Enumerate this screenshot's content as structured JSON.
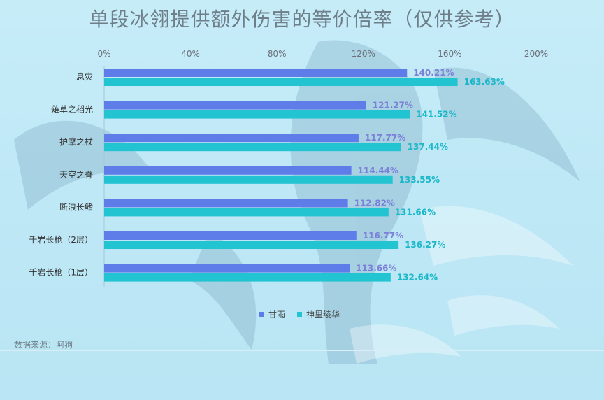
{
  "title": "单段冰翎提供额外伤害的等价倍率（仅供参考）",
  "source": "数据来源：阿狗",
  "colors": {
    "series1": "#5f7de8",
    "series2": "#22c4d2",
    "label1": "#7b7fd8",
    "label2": "#1ab8c8",
    "axis_text": "#6a6f78",
    "category_text": "#333333"
  },
  "chart_data": {
    "type": "bar",
    "orientation": "horizontal",
    "title": "单段冰翎提供额外伤害的等价倍率（仅供参考）",
    "categories": [
      "息灾",
      "薙草之稻光",
      "护摩之杖",
      "天空之脊",
      "断浪长鳍",
      "千岩长枪（2层）",
      "千岩长枪（1层）"
    ],
    "series": [
      {
        "name": "甘雨",
        "values": [
          140.21,
          121.27,
          117.77,
          114.44,
          112.82,
          116.77,
          113.66
        ]
      },
      {
        "name": "神里绫华",
        "values": [
          163.63,
          141.52,
          137.44,
          133.55,
          131.66,
          136.27,
          132.64
        ]
      }
    ],
    "value_labels": [
      [
        "140.21%",
        "121.27%",
        "117.77%",
        "114.44%",
        "112.82%",
        "116.77%",
        "113.66%"
      ],
      [
        "163.63%",
        "141.52%",
        "137.44%",
        "133.55%",
        "131.66%",
        "136.27%",
        "132.64%"
      ]
    ],
    "xticks": [
      "0%",
      "40%",
      "80%",
      "120%",
      "160%",
      "200%"
    ],
    "xlim": [
      0,
      200
    ],
    "legend": [
      "甘雨",
      "神里绫华"
    ],
    "legend_position": "bottom",
    "grid": false
  }
}
